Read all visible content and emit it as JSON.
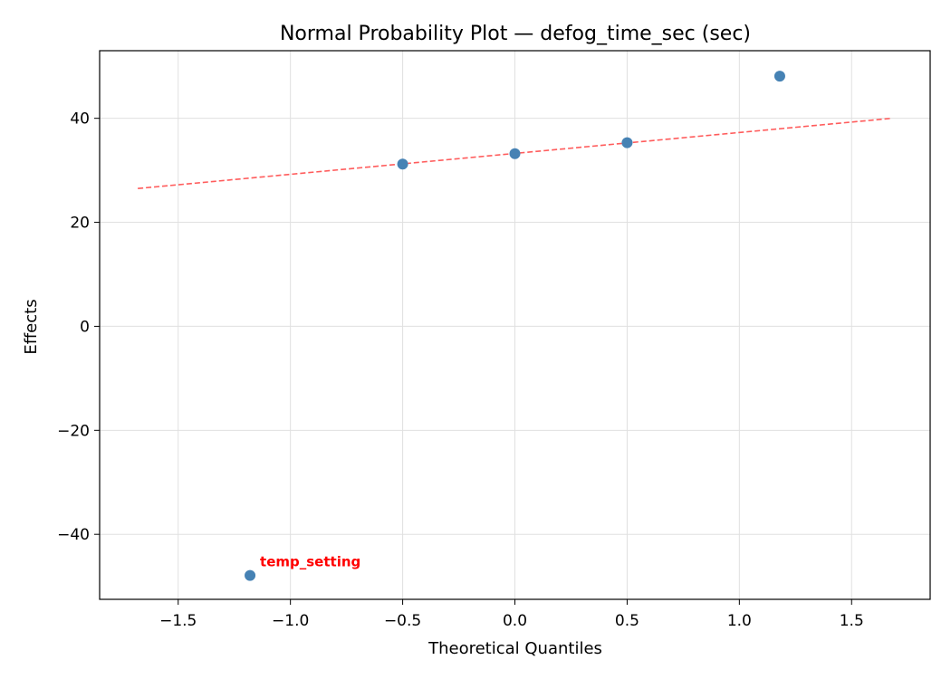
{
  "chart_data": {
    "type": "scatter",
    "title": "Normal Probability Plot — defog_time_sec (sec)",
    "xlabel": "Theoretical Quantiles",
    "ylabel": "Effects",
    "xlim": [
      -1.85,
      1.85
    ],
    "ylim": [
      -52.5,
      53.0
    ],
    "xticks": [
      -1.5,
      -1.0,
      -0.5,
      0.0,
      0.5,
      1.0,
      1.5
    ],
    "xtick_labels": [
      "−1.5",
      "−1.0",
      "−0.5",
      "0.0",
      "0.5",
      "1.0",
      "1.5"
    ],
    "yticks": [
      -40,
      -20,
      0,
      20,
      40
    ],
    "ytick_labels": [
      "−40",
      "−20",
      "0",
      "20",
      "40"
    ],
    "grid": true,
    "points": [
      {
        "x": -1.18,
        "y": -47.9
      },
      {
        "x": -0.5,
        "y": 31.2
      },
      {
        "x": 0.0,
        "y": 33.2
      },
      {
        "x": 0.5,
        "y": 35.3
      },
      {
        "x": 1.18,
        "y": 48.1
      }
    ],
    "reference_line": {
      "x": [
        -1.68,
        1.68
      ],
      "y": [
        26.5,
        40.0
      ]
    },
    "annotations": [
      {
        "text": "temp_setting",
        "x": -1.18,
        "y": -47.9
      }
    ],
    "colors": {
      "point": "#4682b4",
      "reference_line": "#ff5c5c",
      "annotation": "#ff0000",
      "grid": "#e0e0e0"
    }
  }
}
